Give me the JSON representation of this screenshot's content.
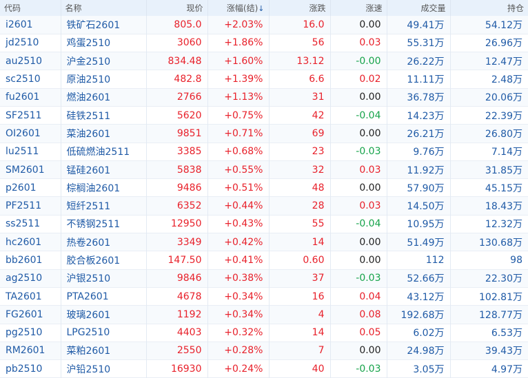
{
  "colors": {
    "up": "#e8202a",
    "down": "#16a34a",
    "neutral": "#222222",
    "text_blue": "#1f5aa6",
    "header_bg": "#e8f1fb"
  },
  "header": {
    "code": "代码",
    "name": "名称",
    "price": "现价",
    "change_pct": "涨幅(结)",
    "sort_icon": "↓",
    "change": "涨跌",
    "speed": "涨速",
    "volume": "成交量",
    "open_interest": "持仓"
  },
  "rows": [
    {
      "code": "i2601",
      "name": "铁矿石2601",
      "price": "805.0",
      "change_pct": "+2.03%",
      "change": "16.0",
      "speed": "0.00",
      "volume": "49.41万",
      "open_interest": "54.12万"
    },
    {
      "code": "jd2510",
      "name": "鸡蛋2510",
      "price": "3060",
      "change_pct": "+1.86%",
      "change": "56",
      "speed": "0.03",
      "volume": "55.31万",
      "open_interest": "26.96万"
    },
    {
      "code": "au2510",
      "name": "沪金2510",
      "price": "834.48",
      "change_pct": "+1.60%",
      "change": "13.12",
      "speed": "-0.00",
      "volume": "26.22万",
      "open_interest": "12.47万"
    },
    {
      "code": "sc2510",
      "name": "原油2510",
      "price": "482.8",
      "change_pct": "+1.39%",
      "change": "6.6",
      "speed": "0.02",
      "volume": "11.11万",
      "open_interest": "2.48万"
    },
    {
      "code": "fu2601",
      "name": "燃油2601",
      "price": "2766",
      "change_pct": "+1.13%",
      "change": "31",
      "speed": "0.00",
      "volume": "36.78万",
      "open_interest": "20.06万"
    },
    {
      "code": "SF2511",
      "name": "硅铁2511",
      "price": "5620",
      "change_pct": "+0.75%",
      "change": "42",
      "speed": "-0.04",
      "volume": "14.23万",
      "open_interest": "22.39万"
    },
    {
      "code": "OI2601",
      "name": "菜油2601",
      "price": "9851",
      "change_pct": "+0.71%",
      "change": "69",
      "speed": "0.00",
      "volume": "26.21万",
      "open_interest": "26.80万"
    },
    {
      "code": "lu2511",
      "name": "低硫燃油2511",
      "price": "3385",
      "change_pct": "+0.68%",
      "change": "23",
      "speed": "-0.03",
      "volume": "9.76万",
      "open_interest": "7.14万"
    },
    {
      "code": "SM2601",
      "name": "锰硅2601",
      "price": "5838",
      "change_pct": "+0.55%",
      "change": "32",
      "speed": "0.03",
      "volume": "11.92万",
      "open_interest": "31.85万"
    },
    {
      "code": "p2601",
      "name": "棕榈油2601",
      "price": "9486",
      "change_pct": "+0.51%",
      "change": "48",
      "speed": "0.00",
      "volume": "57.90万",
      "open_interest": "45.15万"
    },
    {
      "code": "PF2511",
      "name": "短纤2511",
      "price": "6352",
      "change_pct": "+0.44%",
      "change": "28",
      "speed": "0.03",
      "volume": "14.50万",
      "open_interest": "18.43万"
    },
    {
      "code": "ss2511",
      "name": "不锈钢2511",
      "price": "12950",
      "change_pct": "+0.43%",
      "change": "55",
      "speed": "-0.04",
      "volume": "10.95万",
      "open_interest": "12.32万"
    },
    {
      "code": "hc2601",
      "name": "热卷2601",
      "price": "3349",
      "change_pct": "+0.42%",
      "change": "14",
      "speed": "0.00",
      "volume": "51.49万",
      "open_interest": "130.68万"
    },
    {
      "code": "bb2601",
      "name": "胶合板2601",
      "price": "147.50",
      "change_pct": "+0.41%",
      "change": "0.60",
      "speed": "0.00",
      "volume": "112",
      "open_interest": "98"
    },
    {
      "code": "ag2510",
      "name": "沪银2510",
      "price": "9846",
      "change_pct": "+0.38%",
      "change": "37",
      "speed": "-0.03",
      "volume": "52.66万",
      "open_interest": "22.30万"
    },
    {
      "code": "TA2601",
      "name": "PTA2601",
      "price": "4678",
      "change_pct": "+0.34%",
      "change": "16",
      "speed": "0.04",
      "volume": "43.12万",
      "open_interest": "102.81万"
    },
    {
      "code": "FG2601",
      "name": "玻璃2601",
      "price": "1192",
      "change_pct": "+0.34%",
      "change": "4",
      "speed": "0.08",
      "volume": "192.68万",
      "open_interest": "128.77万"
    },
    {
      "code": "pg2510",
      "name": "LPG2510",
      "price": "4403",
      "change_pct": "+0.32%",
      "change": "14",
      "speed": "0.05",
      "volume": "6.02万",
      "open_interest": "6.53万"
    },
    {
      "code": "RM2601",
      "name": "菜粕2601",
      "price": "2550",
      "change_pct": "+0.28%",
      "change": "7",
      "speed": "0.00",
      "volume": "24.98万",
      "open_interest": "39.43万"
    },
    {
      "code": "pb2510",
      "name": "沪铅2510",
      "price": "16930",
      "change_pct": "+0.24%",
      "change": "40",
      "speed": "-0.03",
      "volume": "3.05万",
      "open_interest": "4.97万"
    }
  ]
}
